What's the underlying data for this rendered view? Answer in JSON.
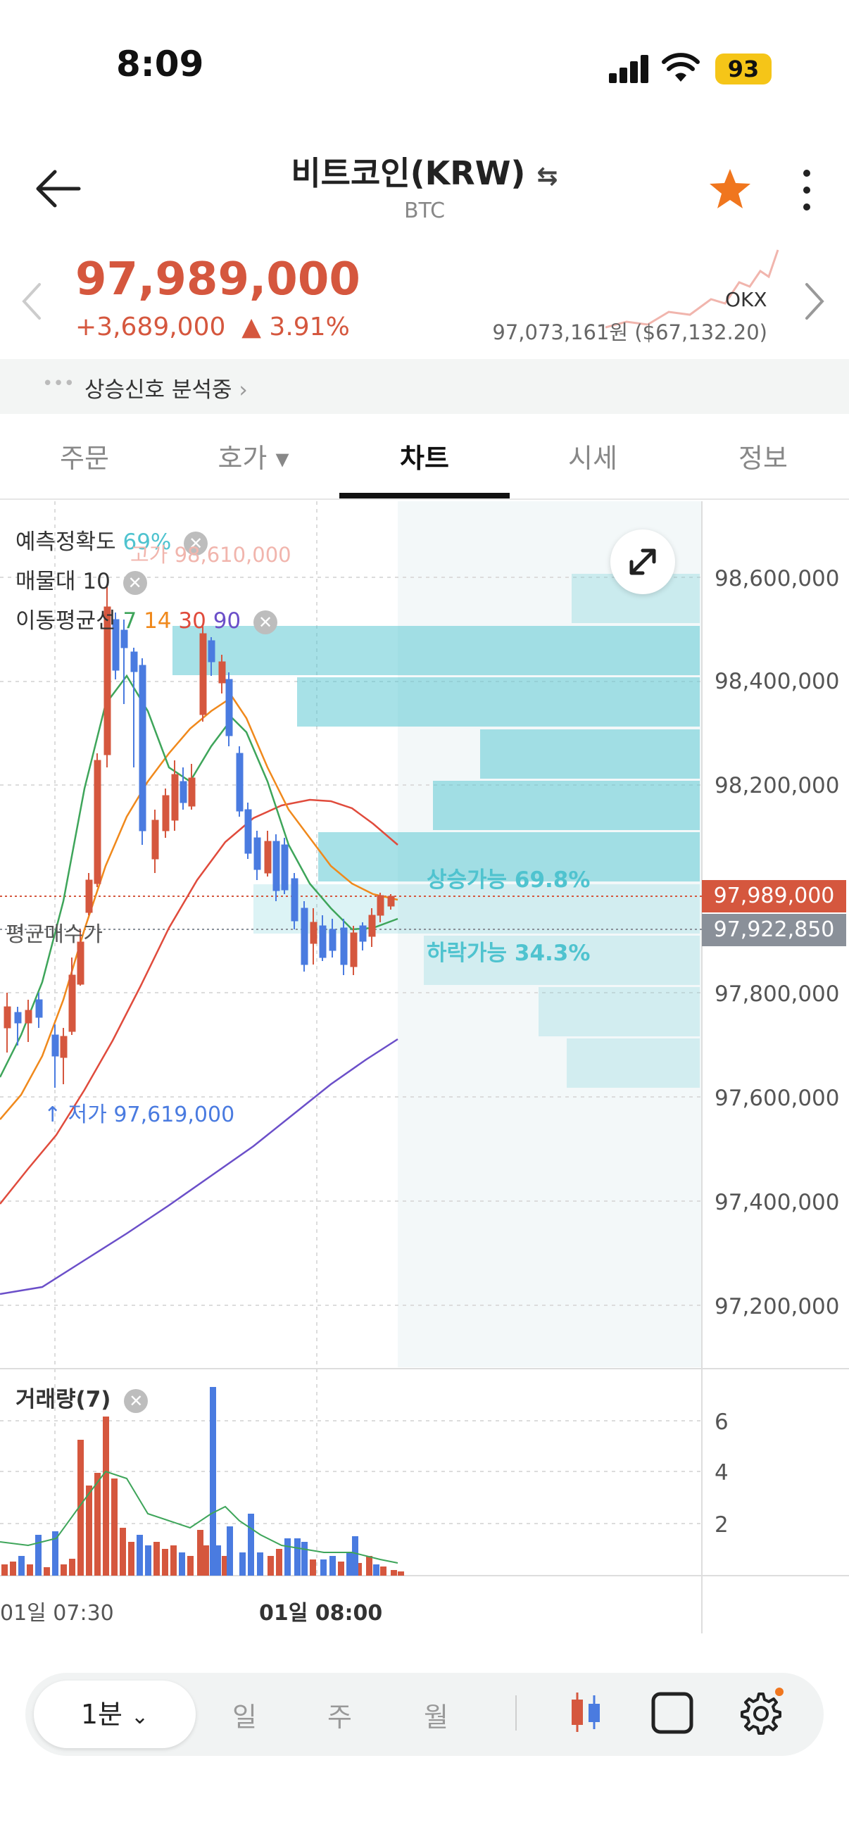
{
  "status_bar": {
    "time": "8:09",
    "battery": "93"
  },
  "header": {
    "title": "비트코인(KRW)",
    "swap_icon": "⇆",
    "subtitle": "BTC",
    "favorite": true
  },
  "price": {
    "current": "97,989,000",
    "change": "+3,689,000",
    "change_pct": "▲ 3.91%",
    "exchange_label": "OKX",
    "global_price": "97,073,161원 ($67,132.20)"
  },
  "signal": {
    "dots": "•••",
    "text": "상승신호 분석중"
  },
  "tabs": [
    {
      "label": "주문"
    },
    {
      "label": "호가 ▾"
    },
    {
      "label": "차트"
    },
    {
      "label": "시세"
    },
    {
      "label": "정보"
    }
  ],
  "indicators": {
    "accuracy_label": "예측정확도",
    "accuracy_value": "69%",
    "volume_profile_label": "매물대",
    "volume_profile_value": "10",
    "ma_label": "이동평균선",
    "ma_values": [
      "7",
      "14",
      "30",
      "90"
    ],
    "ma_colors": [
      "#3ea55a",
      "#f0891c",
      "#e04b3c",
      "#6b4fc9"
    ]
  },
  "chart_annotations": {
    "high": "고가 98,610,000",
    "low": "↑ 저가 97,619,000",
    "avg_buy_label": "평균매수가",
    "up_prob": "상승가능 69.8%",
    "down_prob": "하락가능 34.3%"
  },
  "price_axis": [
    "98,600,000",
    "98,400,000",
    "98,200,000",
    "97,800,000",
    "97,600,000",
    "97,400,000",
    "97,200,000"
  ],
  "price_tags": {
    "current": "97,989,000",
    "avg": "97,922,850"
  },
  "volume": {
    "label": "거래량(7)",
    "axis": [
      "6",
      "4",
      "2"
    ]
  },
  "time_axis": [
    "01일 07:30",
    "01일 08:00"
  ],
  "toolbar": {
    "timeframe": "1분",
    "options": [
      "일",
      "주",
      "월"
    ]
  },
  "colors": {
    "up": "#d5573e",
    "down": "#4a7be0",
    "cyan": "#4fc3cf"
  }
}
